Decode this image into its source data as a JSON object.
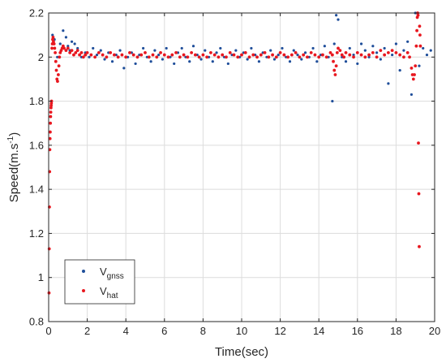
{
  "chart_data": {
    "type": "scatter",
    "xlabel": "Time(sec)",
    "ylabel": {
      "text": "Speed(m.s",
      "superscript": "-1",
      "suffix": ")"
    },
    "xlim": [
      0,
      20
    ],
    "ylim": [
      0.8,
      2.2
    ],
    "xticks": [
      0,
      2,
      4,
      6,
      8,
      10,
      12,
      14,
      16,
      18,
      20
    ],
    "yticks": [
      0.8,
      1,
      1.2,
      1.4,
      1.6,
      1.8,
      2,
      2.2
    ],
    "xtick_labels": [
      "0",
      "2",
      "4",
      "6",
      "8",
      "10",
      "12",
      "14",
      "16",
      "18",
      "20"
    ],
    "ytick_labels": [
      "0.8",
      "1",
      "1.2",
      "1.4",
      "1.6",
      "1.8",
      "2",
      "2.2"
    ],
    "grid": true,
    "legend_position": "bottom-left",
    "series": [
      {
        "name": "V",
        "subscript": "gnss",
        "color": "#1f4e9a",
        "x": [
          0.2,
          0.3,
          0.45,
          0.6,
          0.75,
          0.9,
          1.0,
          1.1,
          1.2,
          1.35,
          1.5,
          1.7,
          1.9,
          2.1,
          2.3,
          2.5,
          2.7,
          2.9,
          3.1,
          3.3,
          3.5,
          3.7,
          3.9,
          4.1,
          4.3,
          4.5,
          4.7,
          4.9,
          5.1,
          5.3,
          5.5,
          5.7,
          5.9,
          6.1,
          6.3,
          6.5,
          6.7,
          6.9,
          7.1,
          7.3,
          7.5,
          7.7,
          7.9,
          8.1,
          8.3,
          8.5,
          8.7,
          8.9,
          9.1,
          9.3,
          9.5,
          9.7,
          9.9,
          10.1,
          10.3,
          10.5,
          10.7,
          10.9,
          11.1,
          11.3,
          11.5,
          11.7,
          11.9,
          12.1,
          12.3,
          12.5,
          12.7,
          12.9,
          13.1,
          13.3,
          13.5,
          13.7,
          13.9,
          14.1,
          14.3,
          14.5,
          14.7,
          14.8,
          14.9,
          15.0,
          15.2,
          15.4,
          15.6,
          15.8,
          16.0,
          16.2,
          16.4,
          16.6,
          16.8,
          17.0,
          17.2,
          17.4,
          17.6,
          17.8,
          18.0,
          18.2,
          18.4,
          18.6,
          18.8,
          19.0,
          19.2,
          19.4,
          19.6,
          19.8
        ],
        "y": [
          2.1,
          2.08,
          2.0,
          2.06,
          2.12,
          2.09,
          2.05,
          2.03,
          2.07,
          2.06,
          2.04,
          2.0,
          2.02,
          2.0,
          2.04,
          2.01,
          2.03,
          1.99,
          2.02,
          1.98,
          2.01,
          2.03,
          1.95,
          2.0,
          2.02,
          1.97,
          2.01,
          2.04,
          2.0,
          1.98,
          2.03,
          2.01,
          1.99,
          2.04,
          2.0,
          1.97,
          2.02,
          2.04,
          2.0,
          1.98,
          2.05,
          2.01,
          1.99,
          2.03,
          2.0,
          1.98,
          2.02,
          2.04,
          2.0,
          1.97,
          2.01,
          2.03,
          2.0,
          2.02,
          1.99,
          2.04,
          2.01,
          1.98,
          2.02,
          2.0,
          2.03,
          1.99,
          2.01,
          2.04,
          2.0,
          1.98,
          2.03,
          2.01,
          1.99,
          2.02,
          2.0,
          2.04,
          1.98,
          2.01,
          2.05,
          2.0,
          1.8,
          2.06,
          2.19,
          2.17,
          2.0,
          1.98,
          2.04,
          2.01,
          1.97,
          2.06,
          2.03,
          2.0,
          2.05,
          2.02,
          1.99,
          2.04,
          1.88,
          2.01,
          2.06,
          1.94,
          2.03,
          2.07,
          1.83,
          2.2,
          1.96,
          2.04,
          2.01,
          2.03
        ]
      },
      {
        "name": "V",
        "subscript": "hat",
        "color": "#e8171f",
        "x": [
          0.02,
          0.03,
          0.04,
          0.05,
          0.06,
          0.07,
          0.08,
          0.09,
          0.1,
          0.11,
          0.12,
          0.13,
          0.14,
          0.15,
          0.17,
          0.19,
          0.21,
          0.23,
          0.25,
          0.28,
          0.31,
          0.34,
          0.37,
          0.4,
          0.43,
          0.46,
          0.5,
          0.53,
          0.56,
          0.6,
          0.65,
          0.7,
          0.75,
          0.8,
          0.9,
          1.0,
          1.1,
          1.2,
          1.3,
          1.4,
          1.5,
          1.6,
          1.7,
          1.8,
          1.9,
          2.0,
          2.2,
          2.4,
          2.6,
          2.8,
          3.0,
          3.2,
          3.4,
          3.6,
          3.8,
          4.0,
          4.2,
          4.4,
          4.6,
          4.8,
          5.0,
          5.2,
          5.4,
          5.6,
          5.8,
          6.0,
          6.2,
          6.4,
          6.6,
          6.8,
          7.0,
          7.2,
          7.4,
          7.6,
          7.8,
          8.0,
          8.2,
          8.4,
          8.6,
          8.8,
          9.0,
          9.2,
          9.4,
          9.6,
          9.8,
          10.0,
          10.2,
          10.4,
          10.6,
          10.8,
          11.0,
          11.2,
          11.4,
          11.6,
          11.8,
          12.0,
          12.2,
          12.4,
          12.6,
          12.8,
          13.0,
          13.2,
          13.4,
          13.6,
          13.8,
          14.0,
          14.2,
          14.4,
          14.6,
          14.7,
          14.75,
          14.8,
          14.85,
          14.9,
          14.95,
          15.0,
          15.1,
          15.2,
          15.3,
          15.4,
          15.6,
          15.8,
          16.0,
          16.2,
          16.4,
          16.6,
          16.8,
          17.0,
          17.2,
          17.4,
          17.6,
          17.8,
          18.0,
          18.2,
          18.4,
          18.6,
          18.7,
          18.8,
          18.85,
          18.9,
          18.95,
          19.0,
          19.05,
          19.08,
          19.1,
          19.12,
          19.14,
          19.16,
          19.18,
          19.2,
          19.22,
          19.24,
          19.26
        ],
        "y": [
          0.93,
          1.13,
          1.32,
          1.48,
          1.58,
          1.63,
          1.66,
          1.7,
          1.73,
          1.75,
          1.77,
          1.78,
          1.79,
          1.8,
          2.04,
          2.06,
          2.08,
          2.09,
          2.07,
          2.06,
          2.04,
          2.02,
          1.98,
          1.94,
          1.9,
          1.89,
          1.92,
          1.96,
          2.0,
          2.02,
          2.03,
          2.04,
          2.05,
          2.04,
          2.03,
          2.04,
          2.02,
          2.03,
          2.01,
          2.02,
          2.03,
          2.01,
          2.02,
          2.0,
          2.01,
          2.02,
          2.01,
          2.0,
          2.02,
          2.01,
          2.0,
          2.02,
          2.01,
          2.0,
          2.01,
          2.0,
          2.02,
          2.01,
          2.0,
          2.01,
          2.02,
          2.0,
          2.01,
          2.0,
          2.02,
          2.01,
          2.0,
          2.01,
          2.02,
          2.0,
          2.01,
          2.0,
          2.02,
          2.01,
          2.0,
          2.01,
          2.0,
          2.02,
          2.01,
          2.0,
          2.01,
          2.0,
          2.02,
          2.01,
          2.0,
          2.01,
          2.02,
          2.0,
          2.01,
          2.0,
          2.01,
          2.02,
          2.0,
          2.01,
          2.0,
          2.02,
          2.01,
          2.0,
          2.01,
          2.02,
          2.0,
          2.01,
          2.0,
          2.02,
          2.01,
          2.0,
          2.01,
          2.0,
          2.02,
          2.01,
          1.98,
          1.94,
          1.92,
          1.96,
          2.02,
          2.04,
          2.03,
          2.01,
          2.0,
          2.02,
          2.01,
          2.0,
          2.02,
          2.01,
          2.0,
          2.01,
          2.02,
          2.0,
          2.03,
          2.01,
          2.02,
          2.03,
          2.02,
          2.01,
          2.0,
          2.02,
          2.0,
          1.95,
          1.92,
          1.9,
          1.92,
          1.96,
          2.05,
          2.12,
          2.18,
          2.2,
          2.19,
          1.61,
          1.38,
          1.14,
          2.14,
          2.1,
          2.05
        ]
      }
    ]
  }
}
